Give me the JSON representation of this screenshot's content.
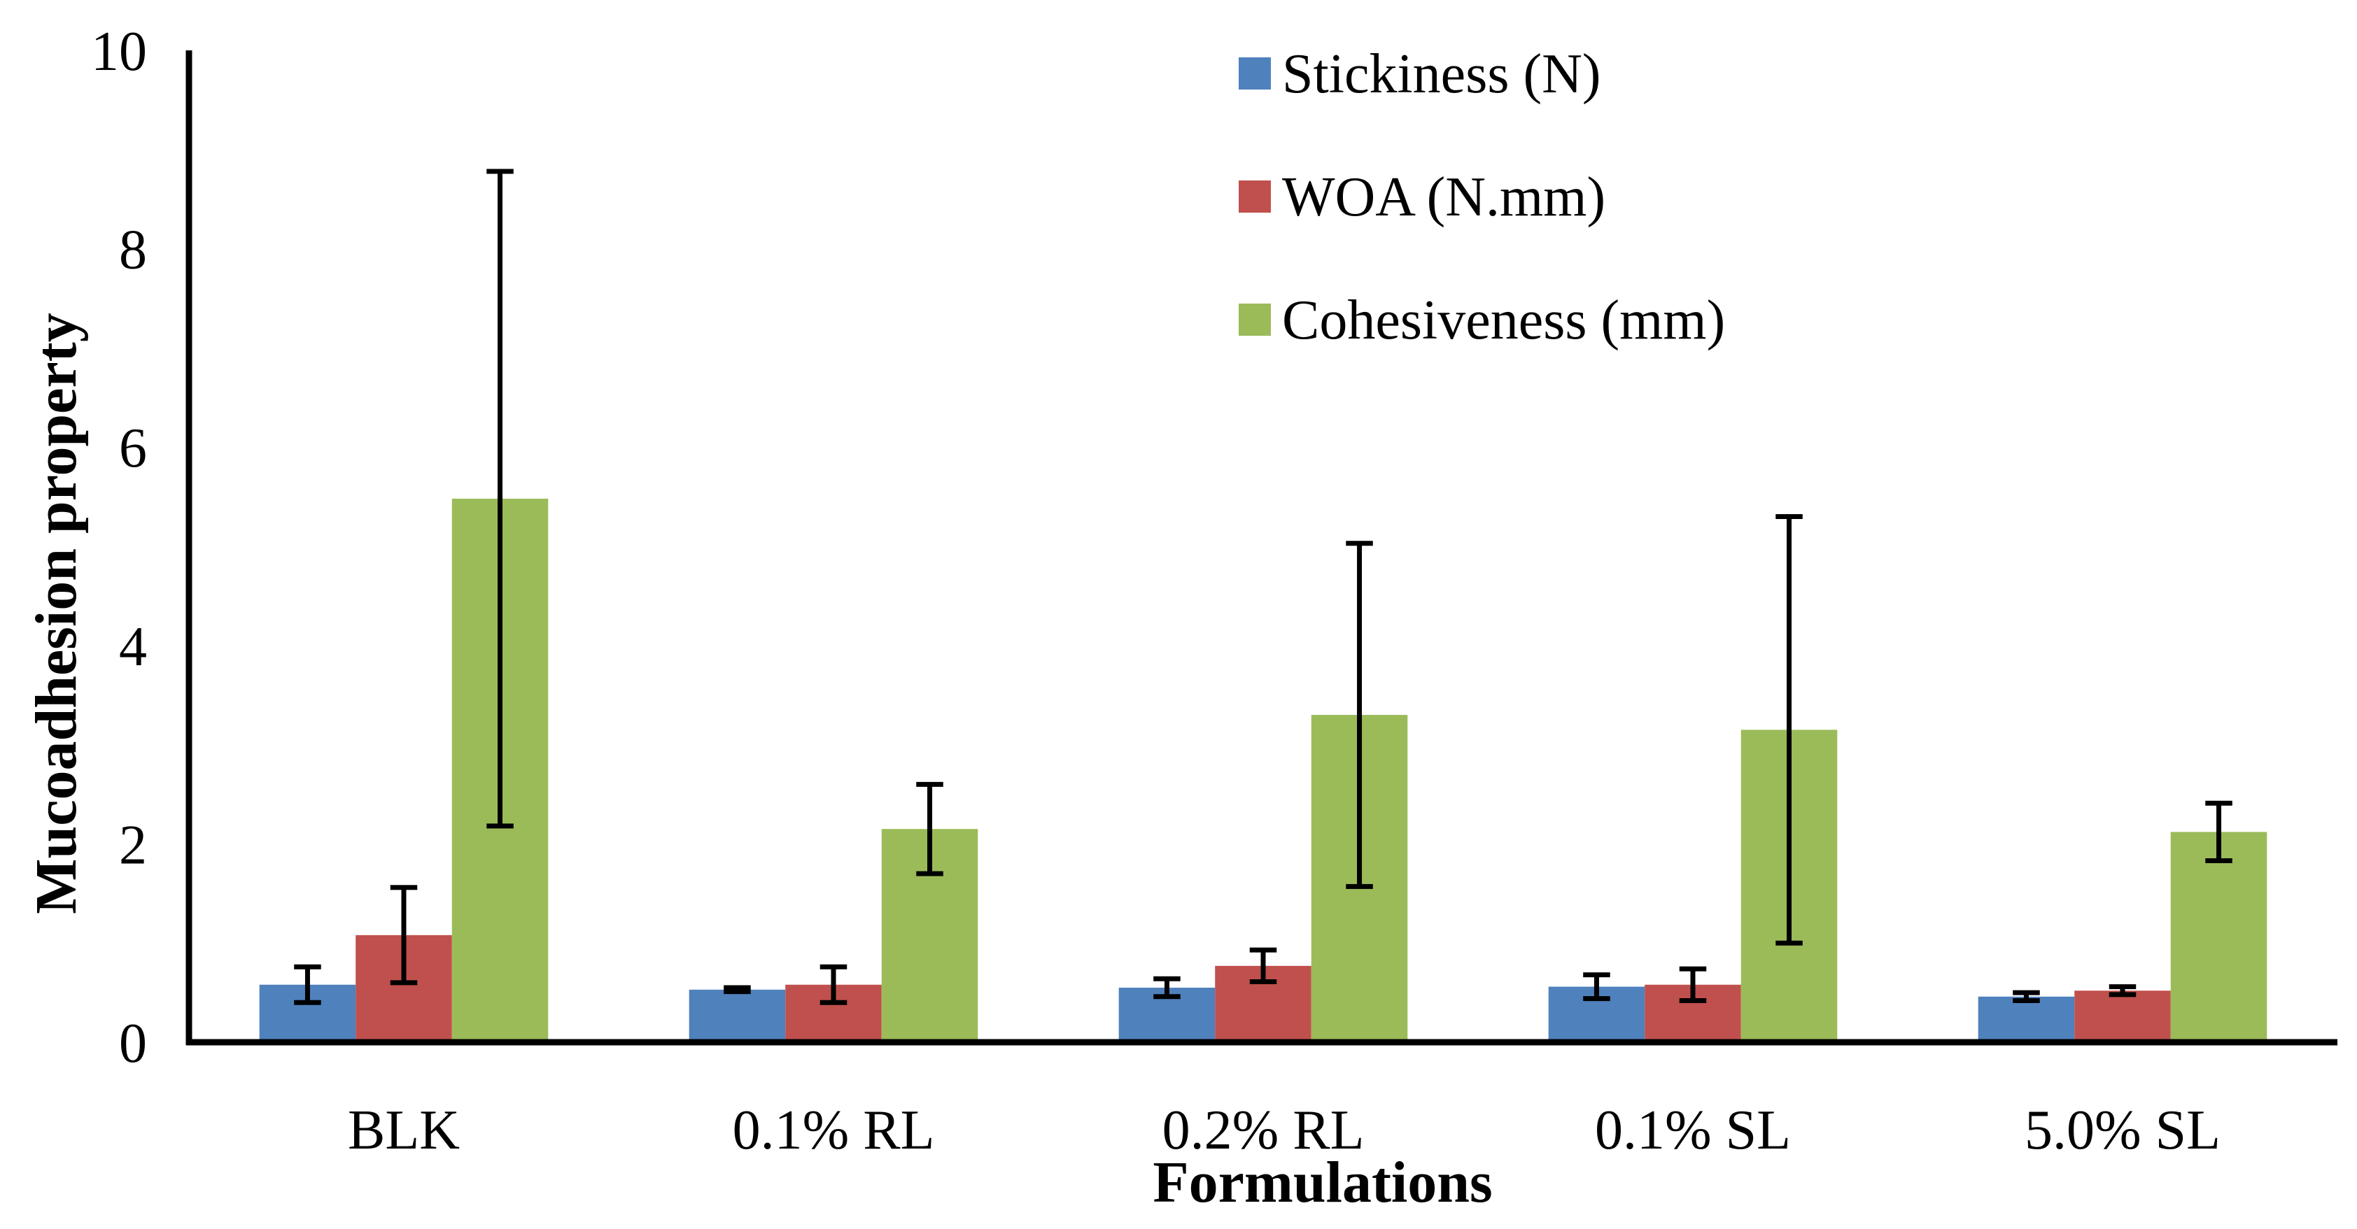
{
  "chart_data": {
    "type": "bar",
    "xlabel": "Formulations",
    "ylabel": "Mucoadhesion property",
    "ylim": [
      0,
      10
    ],
    "yticks": [
      "0",
      "2",
      "4",
      "6",
      "8",
      "10"
    ],
    "categories": [
      "BLK",
      "0.1% RL",
      "0.2% RL",
      "0.1% SL",
      "5.0% SL"
    ],
    "grid": false,
    "legend_position": "top-center",
    "series": [
      {
        "name": "Stickiness (N)",
        "color": "#4F81BD",
        "values": [
          0.58,
          0.53,
          0.55,
          0.56,
          0.46
        ],
        "errors": [
          0.18,
          0.02,
          0.09,
          0.12,
          0.04
        ]
      },
      {
        "name": "WOA (N.mm)",
        "color": "#C0504D",
        "values": [
          1.08,
          0.58,
          0.77,
          0.58,
          0.52
        ],
        "errors": [
          0.48,
          0.18,
          0.16,
          0.16,
          0.04
        ]
      },
      {
        "name": "Cohesiveness (mm)",
        "color": "#9BBB59",
        "values": [
          5.48,
          2.15,
          3.3,
          3.15,
          2.12
        ],
        "errors": [
          3.3,
          0.45,
          1.73,
          2.15,
          0.29
        ]
      }
    ]
  }
}
